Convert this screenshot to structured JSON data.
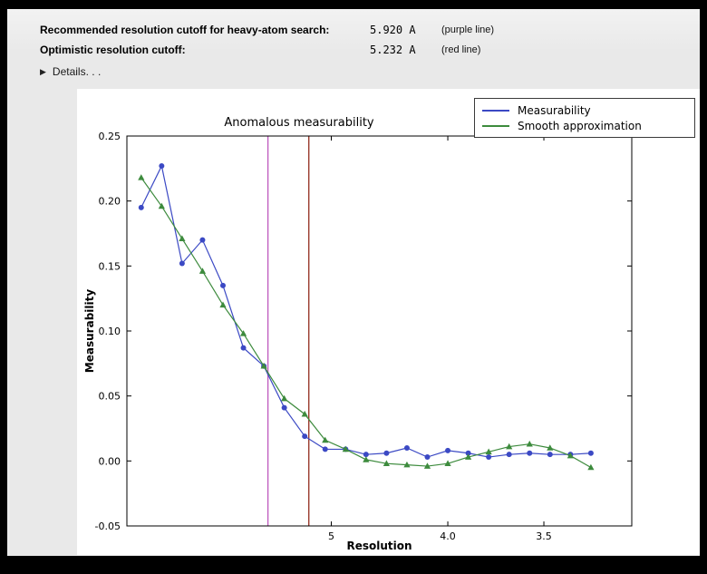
{
  "header": {
    "rows": [
      {
        "label": "Recommended resolution cutoff for heavy-atom search:",
        "value": "5.920 A",
        "note": "(purple line)"
      },
      {
        "label": "Optimistic resolution cutoff:",
        "value": "5.232 A",
        "note": "(red line)"
      }
    ],
    "details": "Details. . ."
  },
  "chart_data": {
    "type": "line",
    "title": "Anomalous measurability",
    "xlabel": "Resolution",
    "ylabel": "Measurability",
    "xlim": [
      -0.7,
      24.0
    ],
    "ylim": [
      -0.05,
      0.25
    ],
    "x_ticks": [
      {
        "v": 9.3,
        "label": "5"
      },
      {
        "v": 15.0,
        "label": "4.0"
      },
      {
        "v": 19.7,
        "label": "3.5"
      }
    ],
    "y_ticks": [
      {
        "v": -0.05,
        "label": "-0.05"
      },
      {
        "v": 0.0,
        "label": "0.00"
      },
      {
        "v": 0.05,
        "label": "0.05"
      },
      {
        "v": 0.1,
        "label": "0.10"
      },
      {
        "v": 0.15,
        "label": "0.15"
      },
      {
        "v": 0.2,
        "label": "0.20"
      },
      {
        "v": 0.25,
        "label": "0.25"
      }
    ],
    "series": [
      {
        "name": "Measurability",
        "color": "#3b49c4",
        "marker": "circle",
        "values": [
          0.195,
          0.227,
          0.152,
          0.17,
          0.135,
          0.087,
          0.073,
          0.041,
          0.019,
          0.009,
          0.009,
          0.005,
          0.006,
          0.01,
          0.003,
          0.008,
          0.006,
          0.003,
          0.005,
          0.006,
          0.005,
          0.005,
          0.006
        ]
      },
      {
        "name": "Smooth approximation",
        "color": "#3d8b3d",
        "marker": "triangle",
        "values": [
          0.218,
          0.196,
          0.171,
          0.146,
          0.12,
          0.098,
          0.073,
          0.048,
          0.036,
          0.016,
          0.009,
          0.001,
          -0.002,
          -0.003,
          -0.004,
          -0.002,
          0.003,
          0.007,
          0.011,
          0.013,
          0.01,
          0.004,
          -0.005
        ]
      }
    ],
    "vlines": [
      {
        "x": 6.2,
        "color": "#c05fc0",
        "name": "purple"
      },
      {
        "x": 8.2,
        "color": "#9a3b2e",
        "name": "red"
      }
    ],
    "legend": {
      "position": "upper right"
    }
  }
}
